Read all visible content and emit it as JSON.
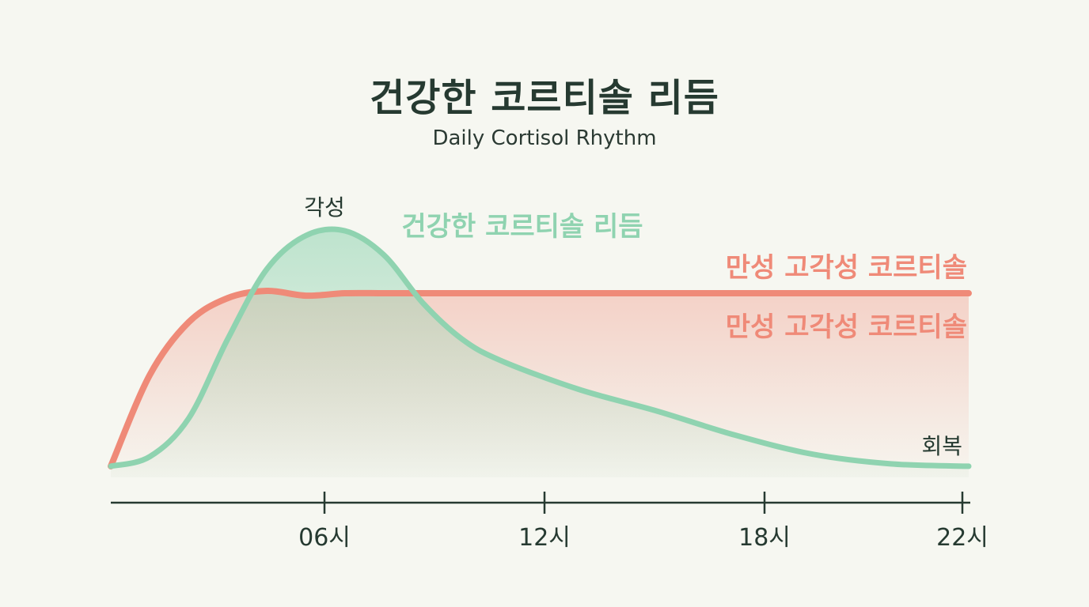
{
  "title": "건강한 코르티솔 리듬",
  "subtitle": "Daily Cortisol Rhythm",
  "colors": {
    "healthy": "#8fd3b0",
    "chronic": "#ef8a78",
    "axis": "#263a31",
    "text": "#263a31"
  },
  "chart_data": {
    "type": "area",
    "x_ticks": [
      "06시",
      "12시",
      "18시",
      "22시"
    ],
    "xlim": [
      0,
      22
    ],
    "series": [
      {
        "name": "건강한 코르티솔 리듬",
        "color": "#8fd3b0",
        "x": [
          0,
          1,
          2,
          3,
          4,
          5,
          6,
          7,
          8,
          9,
          10,
          12,
          14,
          16,
          18,
          20,
          22
        ],
        "y": [
          0.02,
          0.06,
          0.22,
          0.55,
          0.84,
          0.98,
          1.0,
          0.9,
          0.7,
          0.55,
          0.46,
          0.34,
          0.25,
          0.15,
          0.07,
          0.03,
          0.02
        ]
      },
      {
        "name": "만성 고각성 코르티솔",
        "color": "#ef8a78",
        "x": [
          0,
          1,
          2,
          3,
          4,
          5,
          6,
          7,
          8,
          10,
          12,
          14,
          16,
          18,
          20,
          22
        ],
        "y": [
          0.02,
          0.4,
          0.62,
          0.72,
          0.75,
          0.73,
          0.74,
          0.74,
          0.74,
          0.74,
          0.74,
          0.74,
          0.74,
          0.74,
          0.74,
          0.74
        ]
      }
    ],
    "annotations": {
      "peak": "각성",
      "recovery": "회복",
      "healthy_label": "건강한 코르티솔 리듬",
      "chronic_label_top": "만성 고각성 코르티솔",
      "chronic_label_bottom": "만성 고각성 코르티솔"
    }
  }
}
